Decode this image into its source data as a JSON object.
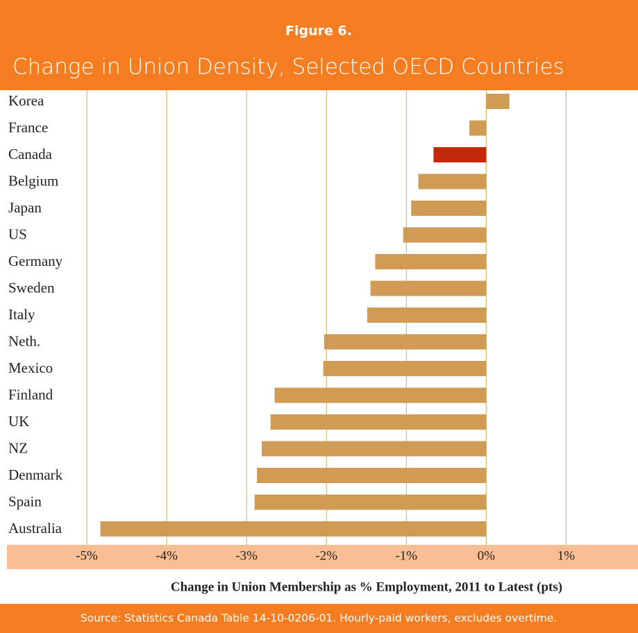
{
  "chart_data": {
    "type": "barh",
    "figure_label": "Figure 6.",
    "title": "Change in Union Density, Selected OECD Countries",
    "xlabel": "Change in Union Membership as % Employment, 2011 to Latest (pts)",
    "source": "Source: Statistics Canada Table 14-10-0206-01. Hourly-paid workers, excludes overtime.",
    "categories": [
      "Korea",
      "France",
      "Canada",
      "Belgium",
      "Japan",
      "US",
      "Germany",
      "Sweden",
      "Italy",
      "Neth.",
      "Mexico",
      "Finland",
      "UK",
      "NZ",
      "Denmark",
      "Spain",
      "Australia"
    ],
    "values": [
      0.29,
      -0.21,
      -0.66,
      -0.85,
      -0.94,
      -1.04,
      -1.39,
      -1.45,
      -1.49,
      -2.03,
      -2.04,
      -2.65,
      -2.7,
      -2.81,
      -2.87,
      -2.9,
      -4.83
    ],
    "colors": [
      "#cf9b55",
      "#cf9b55",
      "#c4290c",
      "#cf9b55",
      "#cf9b55",
      "#cf9b55",
      "#cf9b55",
      "#cf9b55",
      "#cf9b55",
      "#cf9b55",
      "#cf9b55",
      "#cf9b55",
      "#cf9b55",
      "#cf9b55",
      "#cf9b55",
      "#cf9b55",
      "#cf9b55"
    ],
    "xlim": [
      -6,
      1.9
    ],
    "xticks": [
      {
        "value": -5,
        "label": "-5%"
      },
      {
        "value": -4,
        "label": "-4%"
      },
      {
        "value": -3,
        "label": "-3%"
      },
      {
        "value": -2,
        "label": "-2%"
      },
      {
        "value": -1,
        "label": "-1%"
      },
      {
        "value": 0,
        "label": "0%"
      },
      {
        "value": 1,
        "label": "1%"
      }
    ],
    "grid": true
  }
}
